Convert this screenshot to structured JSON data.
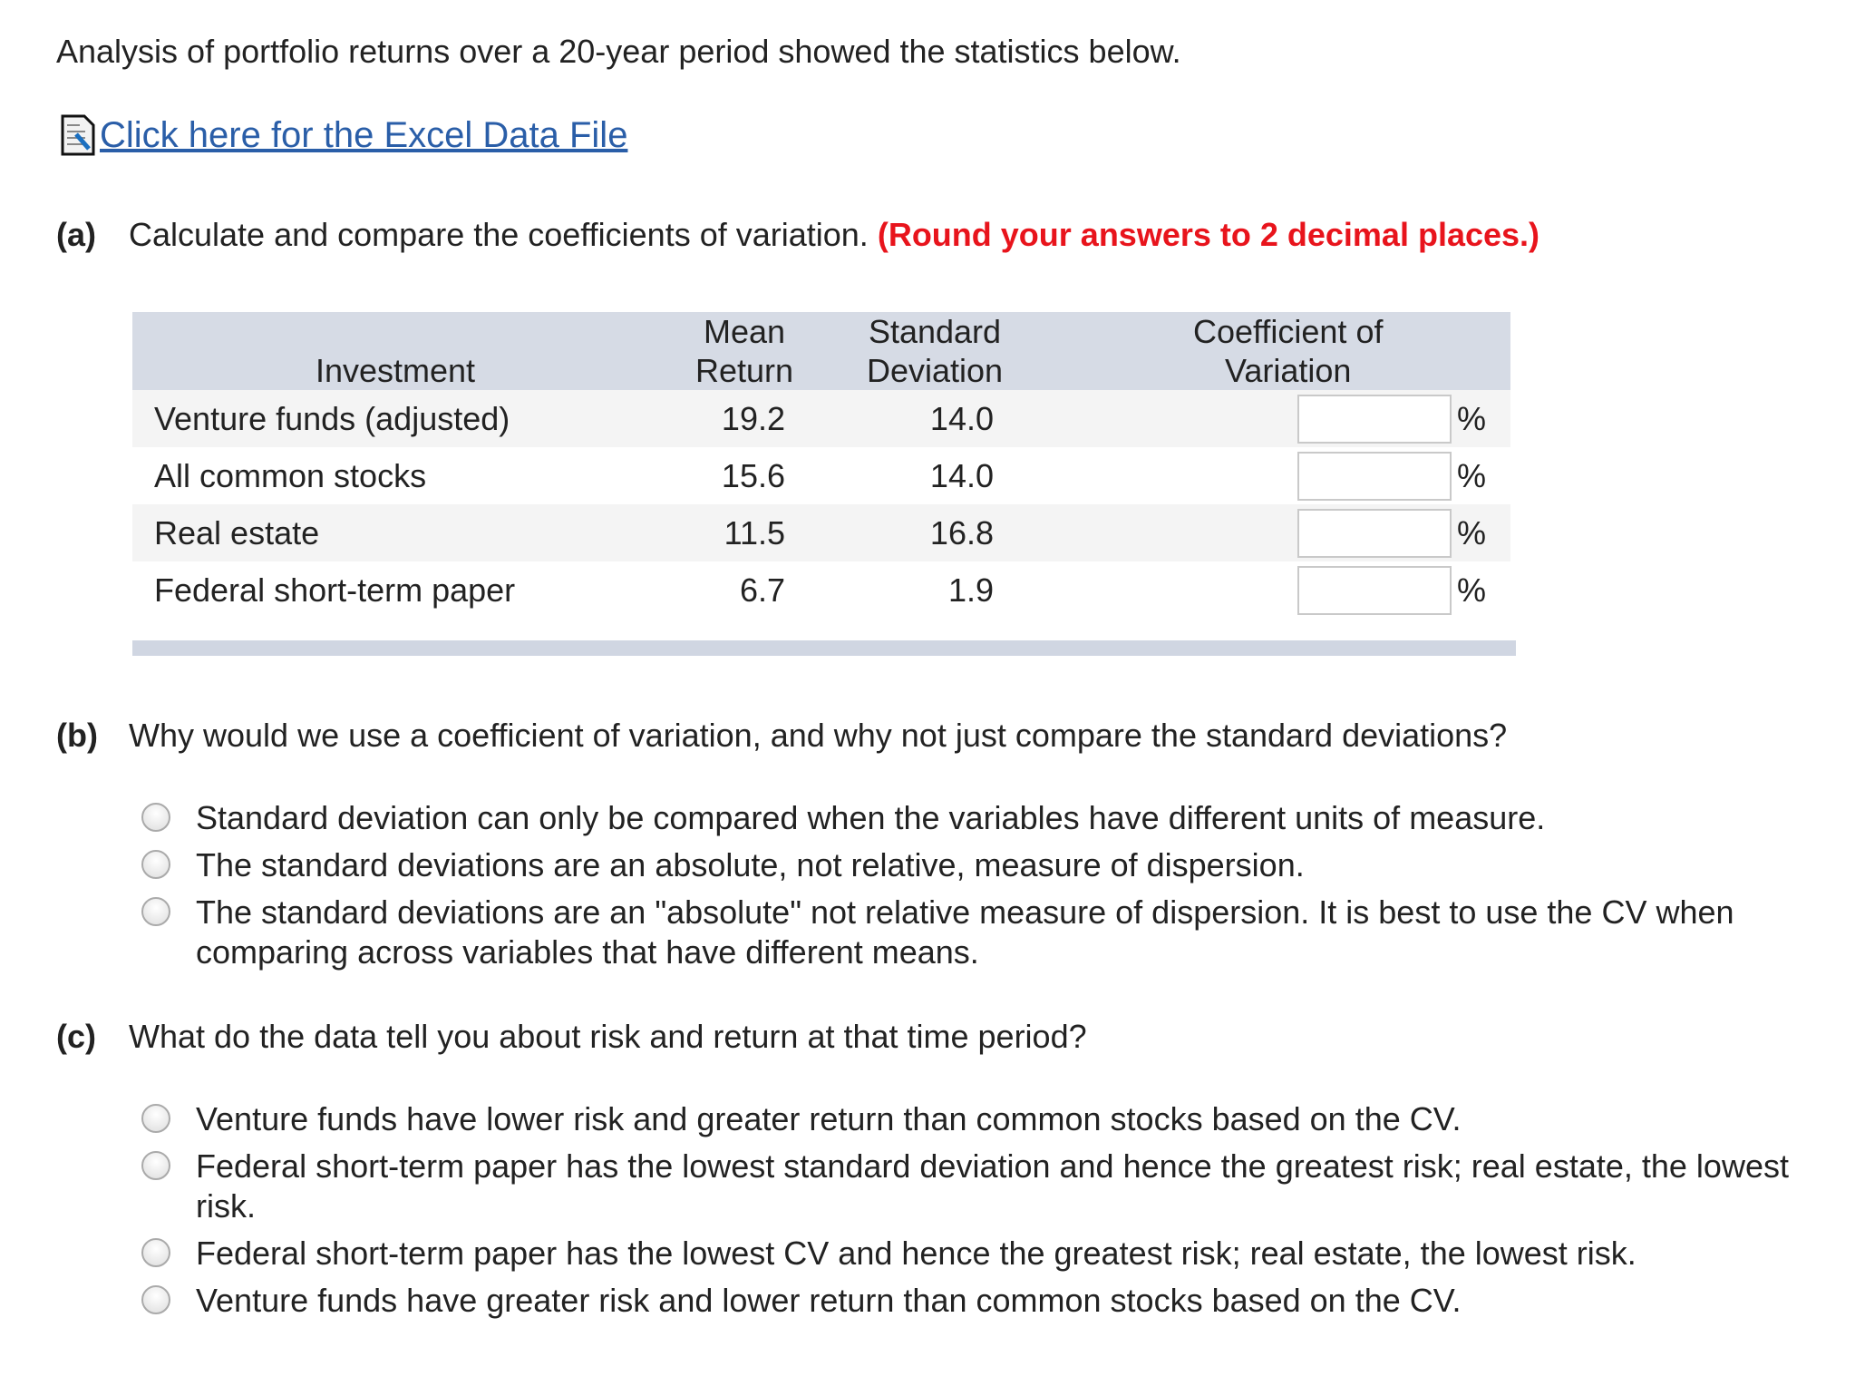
{
  "intro": "Analysis of portfolio returns over a 20-year period showed the statistics below.",
  "excel_link": {
    "label": "Click here for the Excel Data File",
    "icon": "spreadsheet-document-icon"
  },
  "part_a": {
    "label": "(a)",
    "question": "Calculate and compare the coefficients of variation.",
    "instruction": "(Round your answers to 2 decimal places.)",
    "instruction_color": "#e8141c",
    "table": {
      "headers": {
        "investment": "Investment",
        "mean_1": "Mean",
        "mean_2": "Return",
        "sd_1": "Standard",
        "sd_2": "Deviation",
        "cv_1": "Coefficient of",
        "cv_2": "Variation"
      },
      "rows": [
        {
          "investment": "Venture funds (adjusted)",
          "mean": "19.2",
          "sd": "14.0",
          "cv": "",
          "unit": "%"
        },
        {
          "investment": "All common stocks",
          "mean": "15.6",
          "sd": "14.0",
          "cv": "",
          "unit": "%"
        },
        {
          "investment": "Real estate",
          "mean": "11.5",
          "sd": "16.8",
          "cv": "",
          "unit": "%"
        },
        {
          "investment": "Federal short-term paper",
          "mean": "6.7",
          "sd": "1.9",
          "cv": "",
          "unit": "%"
        }
      ]
    }
  },
  "part_b": {
    "label": "(b)",
    "question": "Why would we use a coefficient of variation, and why not just compare the standard deviations?",
    "options": [
      "Standard deviation can only be compared when the variables have different units of measure.",
      "The standard deviations are an absolute, not relative, measure of dispersion.",
      "The standard deviations are an \"absolute\" not relative measure of dispersion. It is best to use the CV when comparing across variables that have different means."
    ]
  },
  "part_c": {
    "label": "(c)",
    "question": "What do the data tell you about risk and return at that time period?",
    "options": [
      "Venture funds have lower risk and greater return than common stocks based on the CV.",
      "Federal short-term paper has the lowest standard deviation and hence the greatest risk; real estate, the lowest risk.",
      "Federal short-term paper has the lowest CV and hence the greatest risk; real estate, the lowest risk.",
      "Venture funds have greater risk and lower return than common stocks based on the CV."
    ]
  }
}
